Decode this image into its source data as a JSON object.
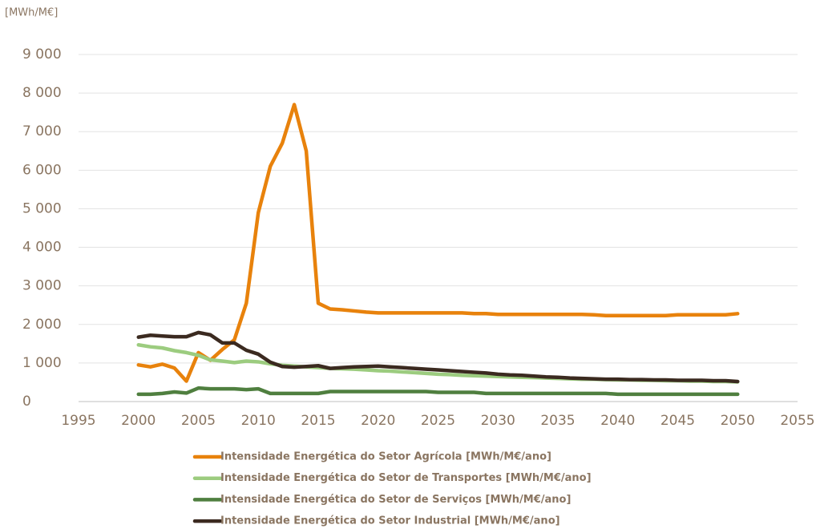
{
  "chart_data": {
    "type": "line",
    "y_label": "[MWh/M€]",
    "x": [
      2000,
      2001,
      2002,
      2003,
      2004,
      2005,
      2006,
      2007,
      2008,
      2009,
      2010,
      2011,
      2012,
      2013,
      2014,
      2015,
      2016,
      2017,
      2018,
      2019,
      2020,
      2021,
      2022,
      2023,
      2024,
      2025,
      2026,
      2027,
      2028,
      2029,
      2030,
      2031,
      2032,
      2033,
      2034,
      2035,
      2036,
      2037,
      2038,
      2039,
      2040,
      2041,
      2042,
      2043,
      2044,
      2045,
      2046,
      2047,
      2048,
      2049,
      2050
    ],
    "series": [
      {
        "name": "Intensidade Energética do Setor Agrícola [MWh/M€/ano]",
        "color": "#e8820c",
        "values": [
          950,
          900,
          970,
          870,
          530,
          1270,
          1070,
          1350,
          1600,
          2550,
          4900,
          6100,
          6700,
          7700,
          6500,
          2550,
          2400,
          2380,
          2350,
          2320,
          2300,
          2300,
          2300,
          2300,
          2300,
          2300,
          2300,
          2300,
          2280,
          2280,
          2260,
          2260,
          2260,
          2260,
          2260,
          2260,
          2260,
          2260,
          2250,
          2230,
          2230,
          2230,
          2230,
          2230,
          2230,
          2250,
          2250,
          2250,
          2250,
          2250,
          2280
        ]
      },
      {
        "name": "Intensidade Energética do Setor de Transportes [MWh/M€/ano]",
        "color": "#9ccc7f",
        "values": [
          1470,
          1420,
          1390,
          1320,
          1270,
          1200,
          1080,
          1050,
          1010,
          1050,
          1030,
          980,
          940,
          920,
          900,
          880,
          860,
          850,
          840,
          820,
          800,
          790,
          770,
          750,
          730,
          710,
          700,
          680,
          670,
          660,
          650,
          640,
          630,
          620,
          610,
          600,
          590,
          580,
          580,
          570,
          560,
          560,
          550,
          550,
          540,
          540,
          530,
          530,
          520,
          520,
          510
        ]
      },
      {
        "name": "Intensidade Energética do Setor de Serviços [MWh/M€/ano]",
        "color": "#4f7f3f",
        "values": [
          190,
          190,
          210,
          250,
          220,
          350,
          330,
          330,
          330,
          310,
          330,
          210,
          210,
          210,
          210,
          210,
          260,
          260,
          260,
          260,
          260,
          260,
          260,
          260,
          260,
          240,
          240,
          240,
          240,
          210,
          210,
          210,
          210,
          210,
          210,
          210,
          210,
          210,
          210,
          210,
          190,
          190,
          190,
          190,
          190,
          190,
          190,
          190,
          190,
          190,
          190
        ]
      },
      {
        "name": "Intensidade Energética do Setor Industrial [MWh/M€/ano]",
        "color": "#3b2a20",
        "values": [
          1670,
          1720,
          1700,
          1680,
          1680,
          1790,
          1730,
          1520,
          1520,
          1330,
          1230,
          1020,
          910,
          890,
          910,
          930,
          860,
          880,
          900,
          910,
          920,
          900,
          880,
          860,
          840,
          820,
          800,
          780,
          760,
          740,
          710,
          690,
          680,
          660,
          640,
          630,
          610,
          600,
          590,
          580,
          580,
          570,
          570,
          560,
          560,
          550,
          550,
          550,
          540,
          540,
          520
        ]
      }
    ],
    "xlim": [
      1995,
      2055
    ],
    "xticks": [
      1995,
      2000,
      2005,
      2010,
      2015,
      2020,
      2025,
      2030,
      2035,
      2040,
      2045,
      2050,
      2055
    ],
    "ylim": [
      0,
      9000
    ],
    "yticks": [
      0,
      {
        "value": 1000,
        "label": "1 000"
      },
      {
        "value": 2000,
        "label": "2 000"
      },
      {
        "value": 3000,
        "label": "3 000"
      },
      {
        "value": 4000,
        "label": "4 000"
      },
      {
        "value": 5000,
        "label": "5 000"
      },
      {
        "value": 6000,
        "label": "6 000"
      },
      {
        "value": 7000,
        "label": "7 000"
      },
      {
        "value": 8000,
        "label": "8 000"
      },
      {
        "value": 9000,
        "label": "9 000"
      }
    ],
    "grid": true,
    "legend": "bottom"
  }
}
